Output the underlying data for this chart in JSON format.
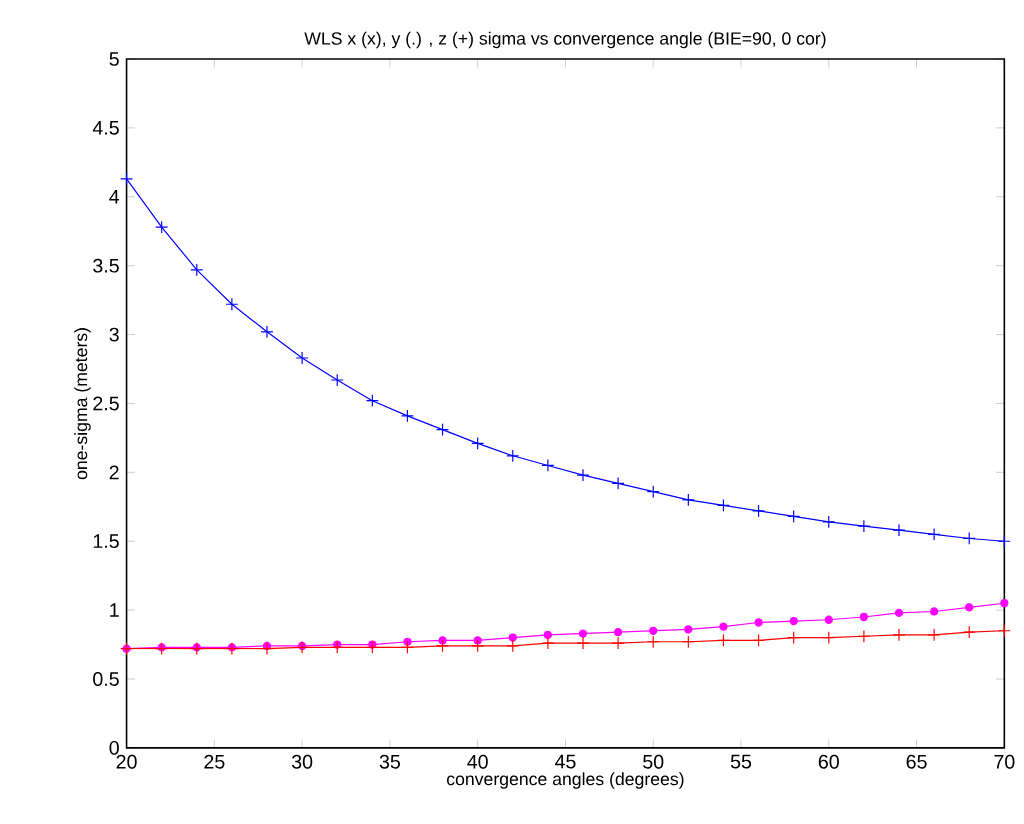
{
  "chart_data": {
    "type": "line",
    "title": "WLS x (x), y (.) , z (+) sigma vs convergence angle (BIE=90, 0 cor)",
    "xlabel": "convergence angles (degrees)",
    "ylabel": "one-sigma (meters)",
    "x": [
      20,
      22,
      24,
      26,
      28,
      30,
      32,
      34,
      36,
      38,
      40,
      42,
      44,
      46,
      48,
      50,
      52,
      54,
      56,
      58,
      60,
      62,
      64,
      66,
      68,
      70
    ],
    "series": [
      {
        "color": "#0000ff",
        "marker": "cross",
        "values": [
          4.13,
          3.78,
          3.47,
          3.22,
          3.02,
          2.83,
          2.67,
          2.52,
          2.41,
          2.31,
          2.21,
          2.12,
          2.05,
          1.98,
          1.92,
          1.86,
          1.8,
          1.76,
          1.72,
          1.68,
          1.64,
          1.61,
          1.58,
          1.55,
          1.52,
          1.5
        ]
      },
      {
        "color": "#ff00ff",
        "marker": "circle",
        "values": [
          0.72,
          0.73,
          0.73,
          0.73,
          0.74,
          0.74,
          0.75,
          0.75,
          0.77,
          0.78,
          0.78,
          0.8,
          0.82,
          0.83,
          0.84,
          0.85,
          0.86,
          0.88,
          0.91,
          0.92,
          0.93,
          0.95,
          0.98,
          0.99,
          1.02,
          1.05
        ]
      },
      {
        "color": "#ff0000",
        "marker": "cross",
        "values": [
          0.72,
          0.72,
          0.72,
          0.72,
          0.72,
          0.73,
          0.73,
          0.73,
          0.73,
          0.74,
          0.74,
          0.74,
          0.76,
          0.76,
          0.76,
          0.77,
          0.77,
          0.78,
          0.78,
          0.8,
          0.8,
          0.81,
          0.82,
          0.82,
          0.84,
          0.85
        ]
      }
    ],
    "xlim": [
      20,
      70
    ],
    "ylim": [
      0,
      5
    ],
    "xticks": [
      20,
      25,
      30,
      35,
      40,
      45,
      50,
      55,
      60,
      65,
      70
    ],
    "yticks": [
      0,
      0.5,
      1,
      1.5,
      2,
      2.5,
      3,
      3.5,
      4,
      4.5,
      5
    ]
  }
}
